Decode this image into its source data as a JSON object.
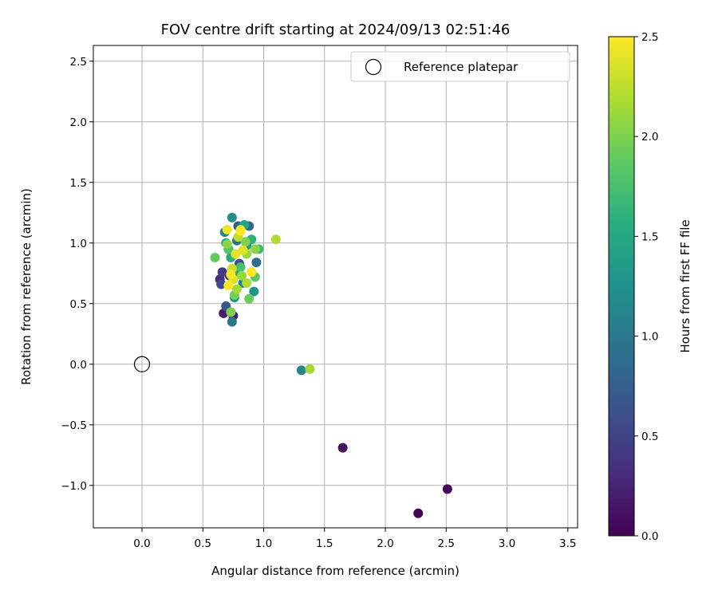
{
  "chart_data": {
    "type": "scatter",
    "title": "FOV centre drift starting at 2024/09/13 02:51:46",
    "xlabel": "Angular distance from reference (arcmin)",
    "ylabel": "Rotation from reference (arcmin)",
    "xlim": [
      -0.4,
      3.58
    ],
    "ylim": [
      -1.35,
      2.63
    ],
    "xticks": [
      0.0,
      0.5,
      1.0,
      1.5,
      2.0,
      2.5,
      3.0,
      3.5
    ],
    "xtick_labels": [
      "0.0",
      "0.5",
      "1.0",
      "1.5",
      "2.0",
      "2.5",
      "3.0",
      "3.5"
    ],
    "yticks": [
      -1.0,
      -0.5,
      0.0,
      0.5,
      1.0,
      1.5,
      2.0,
      2.5
    ],
    "ytick_labels": [
      "−1.0",
      "−0.5",
      "0.0",
      "0.5",
      "1.0",
      "1.5",
      "2.0",
      "2.5"
    ],
    "grid": true,
    "legend": {
      "position": "top-right",
      "entries": [
        "Reference platepar"
      ]
    },
    "reference_point": {
      "x": 0.0,
      "y": 0.0,
      "label": "Reference platepar"
    },
    "colorbar": {
      "label": "Hours from first FF file",
      "colormap": "viridis",
      "range": [
        0.0,
        2.5
      ],
      "ticks": [
        0.0,
        0.5,
        1.0,
        1.5,
        2.0,
        2.5
      ],
      "tick_labels": [
        "0.0",
        "0.5",
        "1.0",
        "1.5",
        "2.0",
        "2.5"
      ]
    },
    "points": [
      {
        "x": 2.27,
        "y": -1.23,
        "c": 0.02
      },
      {
        "x": 2.51,
        "y": -1.03,
        "c": 0.05
      },
      {
        "x": 1.65,
        "y": -0.69,
        "c": 0.12
      },
      {
        "x": 0.67,
        "y": 0.42,
        "c": 0.2
      },
      {
        "x": 0.75,
        "y": 0.4,
        "c": 0.25
      },
      {
        "x": 0.64,
        "y": 0.7,
        "c": 0.3
      },
      {
        "x": 0.72,
        "y": 0.73,
        "c": 0.35
      },
      {
        "x": 0.66,
        "y": 0.76,
        "c": 0.45
      },
      {
        "x": 0.65,
        "y": 0.66,
        "c": 0.55
      },
      {
        "x": 0.8,
        "y": 0.83,
        "c": 0.6
      },
      {
        "x": 0.69,
        "y": 0.48,
        "c": 0.7
      },
      {
        "x": 0.79,
        "y": 1.14,
        "c": 0.75
      },
      {
        "x": 0.71,
        "y": 0.95,
        "c": 0.8
      },
      {
        "x": 0.88,
        "y": 1.14,
        "c": 0.85
      },
      {
        "x": 0.94,
        "y": 0.84,
        "c": 0.9
      },
      {
        "x": 0.78,
        "y": 1.02,
        "c": 0.95
      },
      {
        "x": 0.74,
        "y": 0.35,
        "c": 1.0
      },
      {
        "x": 0.83,
        "y": 0.67,
        "c": 1.05
      },
      {
        "x": 0.68,
        "y": 1.09,
        "c": 1.1
      },
      {
        "x": 1.31,
        "y": -0.05,
        "c": 1.15
      },
      {
        "x": 0.74,
        "y": 1.21,
        "c": 1.2
      },
      {
        "x": 0.76,
        "y": 0.55,
        "c": 1.25
      },
      {
        "x": 0.92,
        "y": 0.6,
        "c": 1.3
      },
      {
        "x": 0.86,
        "y": 0.98,
        "c": 1.35
      },
      {
        "x": 0.69,
        "y": 1.0,
        "c": 1.4
      },
      {
        "x": 0.84,
        "y": 1.15,
        "c": 1.45
      },
      {
        "x": 0.78,
        "y": 0.75,
        "c": 1.5
      },
      {
        "x": 0.73,
        "y": 0.88,
        "c": 1.55
      },
      {
        "x": 0.9,
        "y": 1.03,
        "c": 1.6
      },
      {
        "x": 0.96,
        "y": 0.95,
        "c": 1.7
      },
      {
        "x": 0.81,
        "y": 0.8,
        "c": 1.75
      },
      {
        "x": 0.71,
        "y": 0.95,
        "c": 1.8
      },
      {
        "x": 0.93,
        "y": 0.72,
        "c": 1.85
      },
      {
        "x": 0.6,
        "y": 0.88,
        "c": 1.9
      },
      {
        "x": 0.88,
        "y": 0.54,
        "c": 1.92
      },
      {
        "x": 0.76,
        "y": 0.57,
        "c": 1.95
      },
      {
        "x": 0.73,
        "y": 0.43,
        "c": 2.0
      },
      {
        "x": 0.85,
        "y": 1.01,
        "c": 2.0
      },
      {
        "x": 0.7,
        "y": 0.99,
        "c": 2.05
      },
      {
        "x": 0.93,
        "y": 0.95,
        "c": 2.05
      },
      {
        "x": 0.82,
        "y": 0.73,
        "c": 2.1
      },
      {
        "x": 0.86,
        "y": 0.91,
        "c": 2.1
      },
      {
        "x": 1.38,
        "y": -0.04,
        "c": 2.15
      },
      {
        "x": 0.78,
        "y": 0.62,
        "c": 2.15
      },
      {
        "x": 0.86,
        "y": 0.67,
        "c": 2.2
      },
      {
        "x": 1.1,
        "y": 1.03,
        "c": 2.2
      },
      {
        "x": 0.79,
        "y": 1.05,
        "c": 2.25
      },
      {
        "x": 0.81,
        "y": 1.11,
        "c": 2.3
      },
      {
        "x": 0.74,
        "y": 0.79,
        "c": 2.3
      },
      {
        "x": 0.75,
        "y": 0.7,
        "c": 2.35
      },
      {
        "x": 0.83,
        "y": 0.94,
        "c": 2.4
      },
      {
        "x": 0.77,
        "y": 0.91,
        "c": 2.4
      },
      {
        "x": 0.7,
        "y": 1.11,
        "c": 2.45
      },
      {
        "x": 0.73,
        "y": 0.74,
        "c": 2.5
      },
      {
        "x": 0.71,
        "y": 0.65,
        "c": 2.5
      },
      {
        "x": 0.81,
        "y": 1.1,
        "c": 2.5
      },
      {
        "x": 0.9,
        "y": 0.76,
        "c": 2.5
      }
    ]
  }
}
